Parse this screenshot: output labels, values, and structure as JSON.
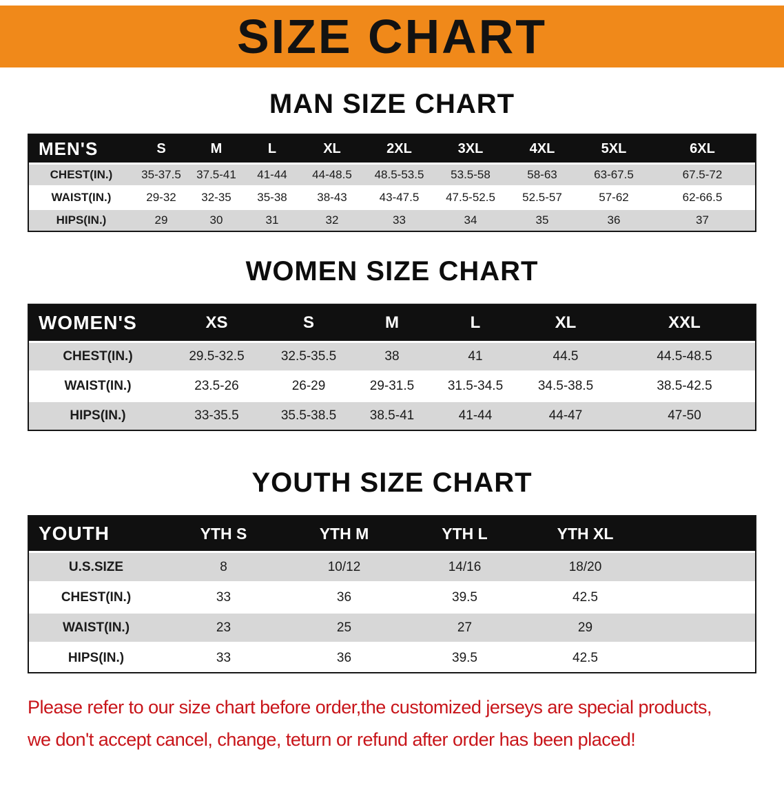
{
  "banner": {
    "title": "SIZE CHART"
  },
  "colors": {
    "banner_bg": "#f0891a",
    "table_header_bg": "#101010",
    "row_gray": "#d7d7d7",
    "note_red": "#c8151a"
  },
  "men": {
    "heading": "MAN SIZE CHART",
    "corner": "MEN'S",
    "columns": [
      "S",
      "M",
      "L",
      "XL",
      "2XL",
      "3XL",
      "4XL",
      "5XL",
      "6XL"
    ],
    "rows": [
      {
        "label": "CHEST(IN.)",
        "values": [
          "35-37.5",
          "37.5-41",
          "41-44",
          "44-48.5",
          "48.5-53.5",
          "53.5-58",
          "58-63",
          "63-67.5",
          "67.5-72"
        ]
      },
      {
        "label": "WAIST(IN.)",
        "values": [
          "29-32",
          "32-35",
          "35-38",
          "38-43",
          "43-47.5",
          "47.5-52.5",
          "52.5-57",
          "57-62",
          "62-66.5"
        ]
      },
      {
        "label": "HIPS(IN.)",
        "values": [
          "29",
          "30",
          "31",
          "32",
          "33",
          "34",
          "35",
          "36",
          "37"
        ]
      }
    ]
  },
  "women": {
    "heading": "WOMEN SIZE CHART",
    "corner": "WOMEN'S",
    "columns": [
      "XS",
      "S",
      "M",
      "L",
      "XL",
      "XXL"
    ],
    "rows": [
      {
        "label": "CHEST(IN.)",
        "values": [
          "29.5-32.5",
          "32.5-35.5",
          "38",
          "41",
          "44.5",
          "44.5-48.5"
        ]
      },
      {
        "label": "WAIST(IN.)",
        "values": [
          "23.5-26",
          "26-29",
          "29-31.5",
          "31.5-34.5",
          "34.5-38.5",
          "38.5-42.5"
        ]
      },
      {
        "label": "HIPS(IN.)",
        "values": [
          "33-35.5",
          "35.5-38.5",
          "38.5-41",
          "41-44",
          "44-47",
          "47-50"
        ]
      }
    ]
  },
  "youth": {
    "heading": "YOUTH SIZE CHART",
    "corner": "YOUTH",
    "columns": [
      "YTH S",
      "YTH M",
      "YTH L",
      "YTH XL"
    ],
    "rows": [
      {
        "label": "U.S.SIZE",
        "values": [
          "8",
          "10/12",
          "14/16",
          "18/20"
        ]
      },
      {
        "label": "CHEST(IN.)",
        "values": [
          "33",
          "36",
          "39.5",
          "42.5"
        ]
      },
      {
        "label": "WAIST(IN.)",
        "values": [
          "23",
          "25",
          "27",
          "29"
        ]
      },
      {
        "label": "HIPS(IN.)",
        "values": [
          "33",
          "36",
          "39.5",
          "42.5"
        ]
      }
    ]
  },
  "footer": {
    "line1": "Please refer to our size chart before order,the customized jerseys are special products,",
    "line2": "we don't accept cancel, change, teturn or refund after order has been placed!"
  }
}
